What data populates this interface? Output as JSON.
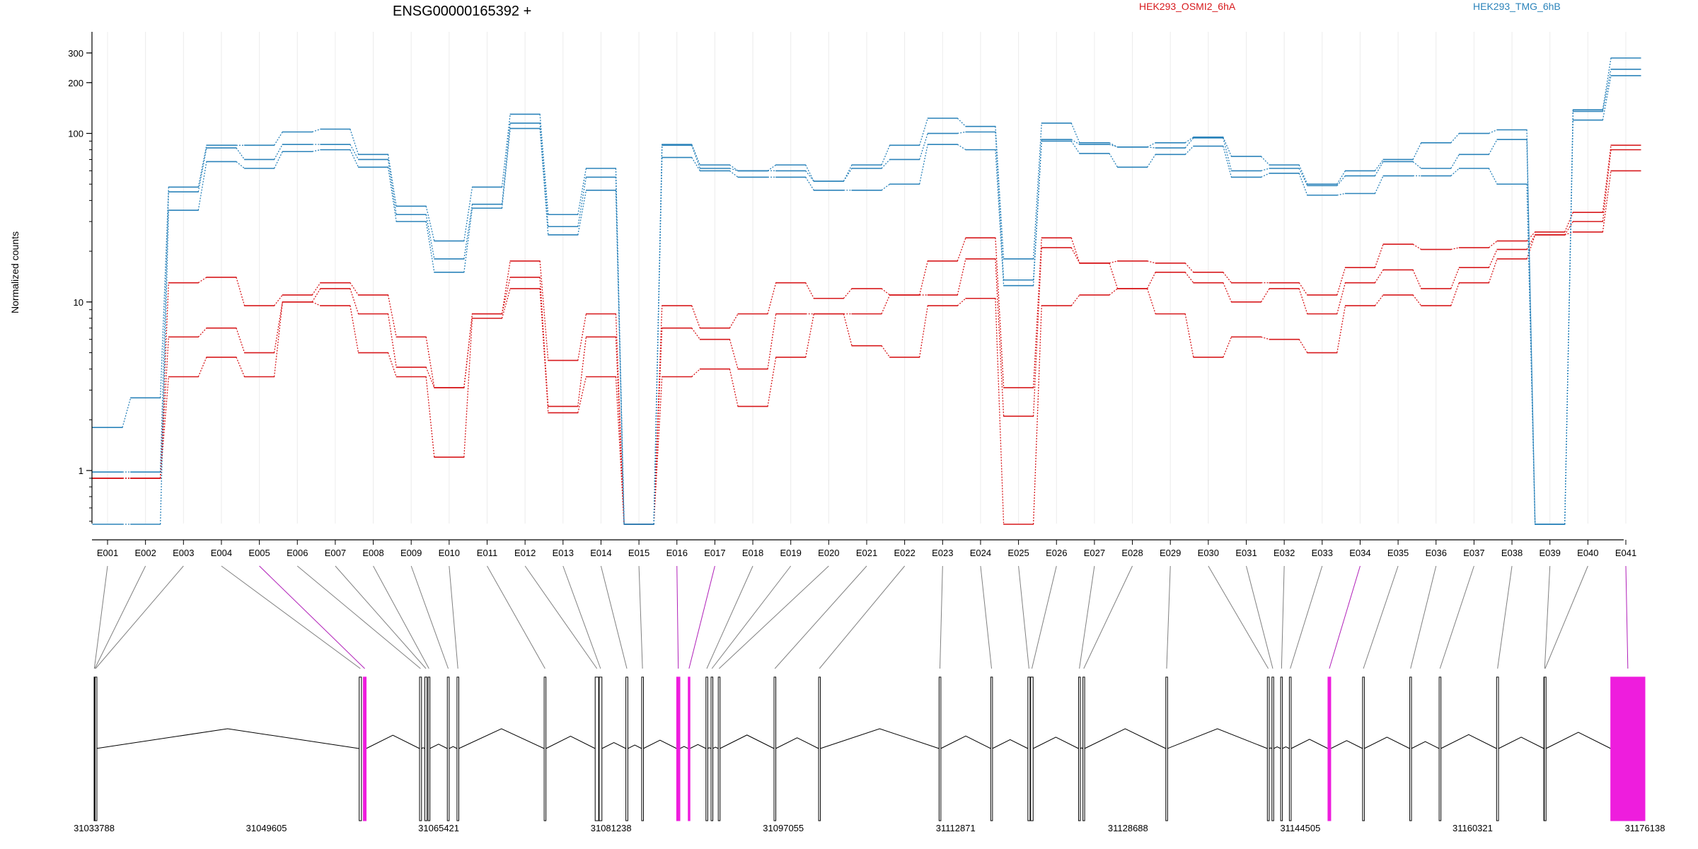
{
  "header": {
    "gene_title": "ENSG00000165392 +",
    "legend": [
      {
        "name": "HEK293_OSMI2_6hA",
        "color": "#d7191c"
      },
      {
        "name": "HEK293_TMG_6hB",
        "color": "#2b83ba"
      }
    ]
  },
  "chart_data": {
    "type": "line",
    "title": "ENSG00000165392 +",
    "xlabel": "",
    "ylabel": "Normalized counts",
    "yscale": "log",
    "ylim": [
      0.48,
      330
    ],
    "yticks": [
      1,
      10,
      100,
      200,
      300
    ],
    "grid": "vertical, light",
    "legend_position": "top",
    "categories": [
      "E001",
      "E002",
      "E003",
      "E004",
      "E005",
      "E006",
      "E007",
      "E008",
      "E009",
      "E010",
      "E011",
      "E012",
      "E013",
      "E014",
      "E015",
      "E016",
      "E017",
      "E018",
      "E019",
      "E020",
      "E021",
      "E022",
      "E023",
      "E024",
      "E025",
      "E026",
      "E027",
      "E028",
      "E029",
      "E030",
      "E031",
      "E032",
      "E033",
      "E034",
      "E035",
      "E036",
      "E037",
      "E038",
      "E039",
      "E040",
      "E041"
    ],
    "series": [
      {
        "group": "HEK293_OSMI2_6hA",
        "color": "#d7191c",
        "values": [
          0.9,
          0.9,
          13,
          14,
          9.5,
          11,
          13,
          11,
          6.2,
          3.1,
          8.5,
          17.5,
          4.5,
          8.5,
          0.48,
          9.5,
          7,
          8.5,
          13,
          10.5,
          12,
          11,
          17.5,
          24,
          3.1,
          24,
          17,
          17.5,
          17,
          15,
          13,
          13,
          11,
          16,
          22,
          20.5,
          21,
          23,
          26,
          34,
          85
        ]
      },
      {
        "group": "HEK293_OSMI2_6hA",
        "color": "#d7191c",
        "values": [
          0.9,
          0.9,
          6.2,
          7,
          5,
          10,
          12,
          8.5,
          4.1,
          3.1,
          8.5,
          14,
          2.4,
          6.2,
          0.48,
          7,
          6,
          4,
          8.5,
          8.5,
          8.5,
          11,
          11,
          18,
          2.1,
          21,
          17,
          12,
          15,
          13,
          10,
          12,
          8.5,
          13,
          15.5,
          12,
          16,
          20.5,
          25,
          30,
          80
        ]
      },
      {
        "group": "HEK293_OSMI2_6hA",
        "color": "#d7191c",
        "values": [
          0.9,
          0.9,
          3.6,
          4.7,
          3.6,
          10,
          9.5,
          5,
          3.6,
          1.2,
          8,
          12,
          2.2,
          3.6,
          0.48,
          3.6,
          4,
          2.4,
          4.7,
          8.5,
          5.5,
          4.7,
          9.5,
          10.5,
          0.48,
          9.5,
          11,
          12,
          8.5,
          4.7,
          6.2,
          6,
          5,
          9.5,
          11,
          9.5,
          13,
          18,
          25,
          26,
          60
        ]
      },
      {
        "group": "HEK293_TMG_6hB",
        "color": "#2b83ba",
        "values": [
          1.8,
          2.7,
          48,
          85,
          85,
          102,
          106,
          75,
          37,
          23,
          48,
          130,
          33,
          62,
          0.48,
          86,
          65,
          60,
          65,
          52,
          65,
          85,
          123,
          110,
          18,
          115,
          88,
          83,
          88,
          95,
          73,
          65,
          50,
          60,
          70,
          88,
          100,
          105,
          0.48,
          138,
          280
        ]
      },
      {
        "group": "HEK293_TMG_6hB",
        "color": "#2b83ba",
        "values": [
          0.98,
          0.98,
          45,
          82,
          70,
          86,
          86,
          70,
          33,
          18,
          38,
          115,
          28,
          55,
          0.48,
          85,
          62,
          60,
          60,
          52,
          62,
          70,
          100,
          102,
          13.5,
          92,
          86,
          83,
          82,
          94,
          60,
          62,
          49,
          56,
          68,
          62,
          75,
          92,
          0.48,
          135,
          240
        ]
      },
      {
        "group": "HEK293_TMG_6hB",
        "color": "#2b83ba",
        "values": [
          0.48,
          0.48,
          35,
          68,
          62,
          78,
          80,
          63,
          30,
          15,
          36,
          107,
          25,
          46,
          0.48,
          72,
          60,
          55,
          55,
          46,
          46,
          50,
          86,
          80,
          12.5,
          90,
          76,
          63,
          75,
          84,
          55,
          58,
          43,
          44,
          56,
          56,
          62,
          50,
          0.48,
          120,
          220
        ]
      }
    ],
    "gene_model": {
      "coordinate_ticks": [
        "31033788",
        "31049605",
        "31065421",
        "31081238",
        "31097055",
        "31112871",
        "31128688",
        "31144505",
        "31160321",
        "31176138"
      ],
      "coordinate_values": [
        31033788,
        31049605,
        31065421,
        31081238,
        31097055,
        31112871,
        31128688,
        31144505,
        31160321,
        31176138
      ],
      "range": [
        31033788,
        31176138
      ],
      "highlight_color": "#ee1ddd",
      "exons": [
        {
          "id": "E001",
          "start": 31033788,
          "end": 31033830,
          "hl": false
        },
        {
          "id": "E002",
          "start": 31033830,
          "end": 31033880,
          "hl": false
        },
        {
          "id": "E003",
          "start": 31033880,
          "end": 31033960,
          "hl": false
        },
        {
          "id": "E004",
          "start": 31058120,
          "end": 31058330,
          "hl": false
        },
        {
          "id": "E005",
          "start": 31058500,
          "end": 31058760,
          "hl": true
        },
        {
          "id": "E006",
          "start": 31063660,
          "end": 31063840,
          "hl": false
        },
        {
          "id": "E007",
          "start": 31064150,
          "end": 31064350,
          "hl": false
        },
        {
          "id": "E008",
          "start": 31064450,
          "end": 31064600,
          "hl": false
        },
        {
          "id": "E009",
          "start": 31066210,
          "end": 31066380,
          "hl": false
        },
        {
          "id": "E010",
          "start": 31067100,
          "end": 31067260,
          "hl": false
        },
        {
          "id": "E011",
          "start": 31075100,
          "end": 31075260,
          "hl": false
        },
        {
          "id": "E012",
          "start": 31079780,
          "end": 31080100,
          "hl": false
        },
        {
          "id": "E013",
          "start": 31080150,
          "end": 31080400,
          "hl": false
        },
        {
          "id": "E014",
          "start": 31082600,
          "end": 31082780,
          "hl": false
        },
        {
          "id": "E015",
          "start": 31084050,
          "end": 31084200,
          "hl": false
        },
        {
          "id": "E016",
          "start": 31087260,
          "end": 31087560,
          "hl": true
        },
        {
          "id": "E017",
          "start": 31088320,
          "end": 31088470,
          "hl": true
        },
        {
          "id": "E018",
          "start": 31089950,
          "end": 31090100,
          "hl": false
        },
        {
          "id": "E019",
          "start": 31090420,
          "end": 31090570,
          "hl": false
        },
        {
          "id": "E020",
          "start": 31091080,
          "end": 31091230,
          "hl": false
        },
        {
          "id": "E021",
          "start": 31096200,
          "end": 31096350,
          "hl": false
        },
        {
          "id": "E022",
          "start": 31100290,
          "end": 31100440,
          "hl": false
        },
        {
          "id": "E023",
          "start": 31111350,
          "end": 31111500,
          "hl": false
        },
        {
          "id": "E024",
          "start": 31116090,
          "end": 31116240,
          "hl": false
        },
        {
          "id": "E025",
          "start": 31119500,
          "end": 31119700,
          "hl": false
        },
        {
          "id": "E026",
          "start": 31119750,
          "end": 31119980,
          "hl": false
        },
        {
          "id": "E027",
          "start": 31124150,
          "end": 31124300,
          "hl": false
        },
        {
          "id": "E028",
          "start": 31124550,
          "end": 31124700,
          "hl": false
        },
        {
          "id": "E029",
          "start": 31132160,
          "end": 31132310,
          "hl": false
        },
        {
          "id": "E030",
          "start": 31141480,
          "end": 31141650,
          "hl": false
        },
        {
          "id": "E031",
          "start": 31141900,
          "end": 31142060,
          "hl": false
        },
        {
          "id": "E032",
          "start": 31142700,
          "end": 31142860,
          "hl": false
        },
        {
          "id": "E033",
          "start": 31143500,
          "end": 31143660,
          "hl": false
        },
        {
          "id": "E034",
          "start": 31147040,
          "end": 31147300,
          "hl": true
        },
        {
          "id": "E035",
          "start": 31150220,
          "end": 31150370,
          "hl": false
        },
        {
          "id": "E036",
          "start": 31154550,
          "end": 31154700,
          "hl": false
        },
        {
          "id": "E037",
          "start": 31157250,
          "end": 31157400,
          "hl": false
        },
        {
          "id": "E038",
          "start": 31162520,
          "end": 31162700,
          "hl": false
        },
        {
          "id": "E039",
          "start": 31166860,
          "end": 31167010,
          "hl": false
        },
        {
          "id": "E040",
          "start": 31166900,
          "end": 31167050,
          "hl": false
        },
        {
          "id": "E041",
          "start": 31173000,
          "end": 31176138,
          "hl": true
        }
      ]
    }
  }
}
